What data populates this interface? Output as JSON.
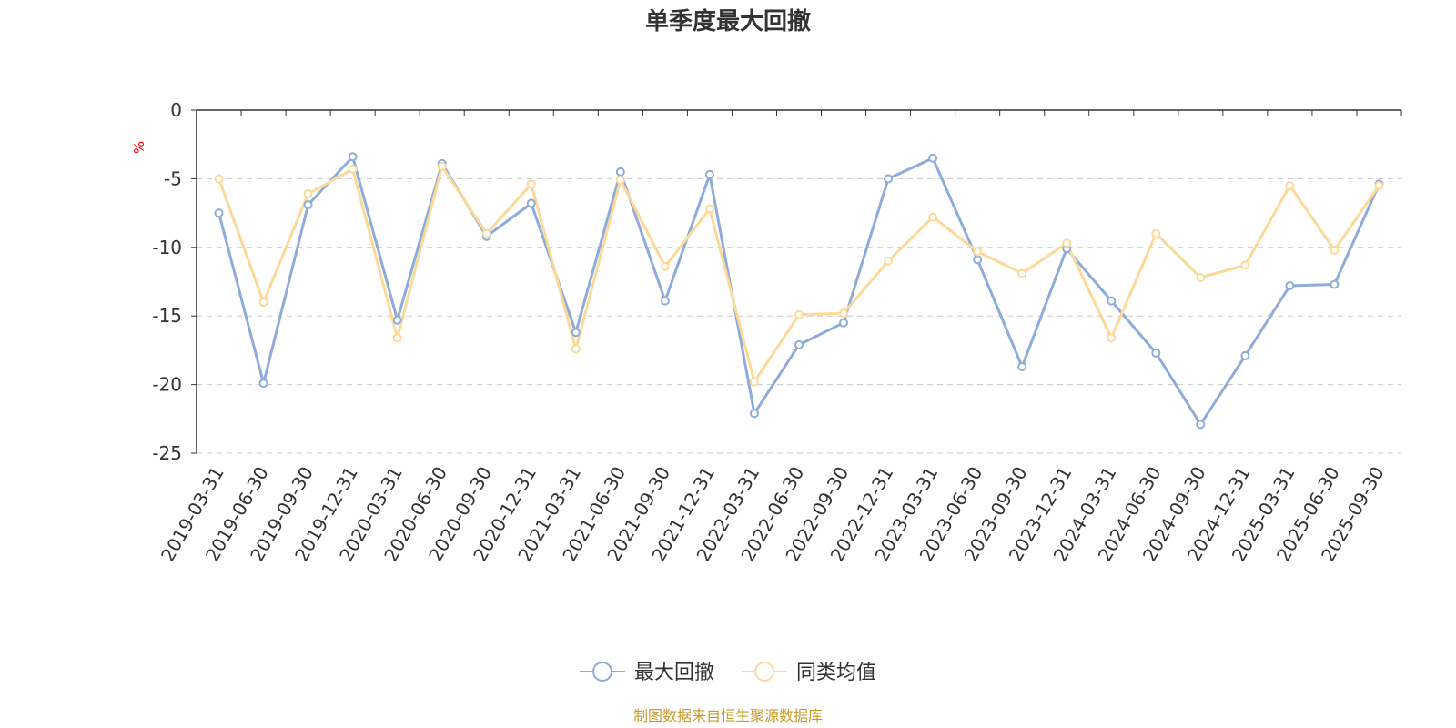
{
  "colors": {
    "series1": "#8eacd9",
    "series2": "#fcd999",
    "unit": "#ff0000",
    "source": "#c89a2c",
    "grid": "#c8c8c8",
    "axis": "#333333"
  },
  "source_text": "制图数据来自恒生聚源数据库",
  "chart_data": {
    "type": "line",
    "title": "单季度最大回撤",
    "ylabel": "%",
    "ylim": [
      -25,
      0
    ],
    "yticks": [
      0,
      -5,
      -10,
      -15,
      -20,
      -25
    ],
    "grid": "horizontal dashed",
    "legend_position": "bottom-center",
    "categories": [
      "2019-03-31",
      "2019-06-30",
      "2019-09-30",
      "2019-12-31",
      "2020-03-31",
      "2020-06-30",
      "2020-09-30",
      "2020-12-31",
      "2021-03-31",
      "2021-06-30",
      "2021-09-30",
      "2021-12-31",
      "2022-03-31",
      "2022-06-30",
      "2022-09-30",
      "2022-12-31",
      "2023-03-31",
      "2023-06-30",
      "2023-09-30",
      "2023-12-31",
      "2024-03-31",
      "2024-06-30",
      "2024-09-30",
      "2024-12-31",
      "2025-03-31",
      "2025-06-30",
      "2025-09-30"
    ],
    "series": [
      {
        "name": "最大回撤",
        "values": [
          -7.5,
          -19.9,
          -6.9,
          -3.4,
          -15.3,
          -3.9,
          -9.2,
          -6.8,
          -16.2,
          -4.5,
          -13.9,
          -4.7,
          -22.1,
          -17.1,
          -15.5,
          -5.0,
          -3.5,
          -10.9,
          -18.7,
          -10.1,
          -13.9,
          -17.7,
          -22.9,
          -17.9,
          -12.8,
          -12.7,
          -5.4
        ]
      },
      {
        "name": "同类均值",
        "values": [
          -5.0,
          -14.0,
          -6.1,
          -4.3,
          -16.6,
          -4.1,
          -9.0,
          -5.4,
          -17.4,
          -5.1,
          -11.4,
          -7.2,
          -19.8,
          -14.9,
          -14.8,
          -11.0,
          -7.8,
          -10.3,
          -11.9,
          -9.7,
          -16.6,
          -9.0,
          -12.2,
          -11.3,
          -5.5,
          -10.2,
          -5.5
        ]
      }
    ]
  }
}
